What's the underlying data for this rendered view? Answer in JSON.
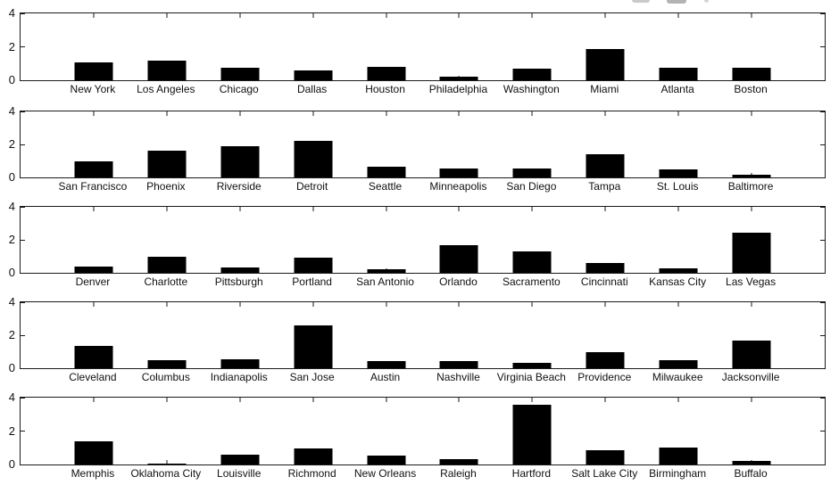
{
  "figure": {
    "background": "#ffffff",
    "bar_color": "#000000",
    "axis_color": "#1a1a1a",
    "ylim": [
      0,
      4
    ],
    "yticks": [
      "0",
      "2",
      "4"
    ]
  },
  "chart_data": [
    {
      "type": "bar",
      "title": "",
      "xlabel": "",
      "ylabel": "",
      "ylim": [
        0,
        4
      ],
      "yticks": [
        0,
        2,
        4
      ],
      "grid": false,
      "legend": false,
      "categories": [
        "New York",
        "Los Angeles",
        "Chicago",
        "Dallas",
        "Houston",
        "Philadelphia",
        "Washington",
        "Miami",
        "Atlanta",
        "Boston"
      ],
      "values": [
        1.05,
        1.15,
        0.75,
        0.6,
        0.8,
        0.2,
        0.7,
        1.85,
        0.75,
        0.75
      ]
    },
    {
      "type": "bar",
      "title": "",
      "xlabel": "",
      "ylabel": "",
      "ylim": [
        0,
        4
      ],
      "yticks": [
        0,
        2,
        4
      ],
      "grid": false,
      "legend": false,
      "categories": [
        "San Francisco",
        "Phoenix",
        "Riverside",
        "Detroit",
        "Seattle",
        "Minneapolis",
        "San Diego",
        "Tampa",
        "St. Louis",
        "Baltimore"
      ],
      "values": [
        1.0,
        1.6,
        1.9,
        2.2,
        0.65,
        0.55,
        0.55,
        1.4,
        0.5,
        0.15
      ]
    },
    {
      "type": "bar",
      "title": "",
      "xlabel": "",
      "ylabel": "",
      "ylim": [
        0,
        4
      ],
      "yticks": [
        0,
        2,
        4
      ],
      "grid": false,
      "legend": false,
      "categories": [
        "Denver",
        "Charlotte",
        "Pittsburgh",
        "Portland",
        "San Antonio",
        "Orlando",
        "Sacramento",
        "Cincinnati",
        "Kansas City",
        "Las Vegas"
      ],
      "values": [
        0.4,
        1.0,
        0.3,
        0.9,
        0.2,
        1.7,
        1.3,
        0.6,
        0.25,
        2.45
      ]
    },
    {
      "type": "bar",
      "title": "",
      "xlabel": "",
      "ylabel": "",
      "ylim": [
        0,
        4
      ],
      "yticks": [
        0,
        2,
        4
      ],
      "grid": false,
      "legend": false,
      "categories": [
        "Cleveland",
        "Columbus",
        "Indianapolis",
        "San Jose",
        "Austin",
        "Nashville",
        "Virginia Beach",
        "Providence",
        "Milwaukee",
        "Jacksonville"
      ],
      "values": [
        1.35,
        0.5,
        0.55,
        2.6,
        0.45,
        0.45,
        0.3,
        1.0,
        0.5,
        1.7
      ]
    },
    {
      "type": "bar",
      "title": "",
      "xlabel": "",
      "ylabel": "",
      "ylim": [
        0,
        4
      ],
      "yticks": [
        0,
        2,
        4
      ],
      "grid": false,
      "legend": false,
      "categories": [
        "Memphis",
        "Oklahoma City",
        "Louisville",
        "Richmond",
        "New Orleans",
        "Raleigh",
        "Hartford",
        "Salt Lake City",
        "Birmingham",
        "Buffalo"
      ],
      "values": [
        1.4,
        0.03,
        0.6,
        0.95,
        0.55,
        0.3,
        3.6,
        0.85,
        1.0,
        0.2
      ]
    }
  ]
}
